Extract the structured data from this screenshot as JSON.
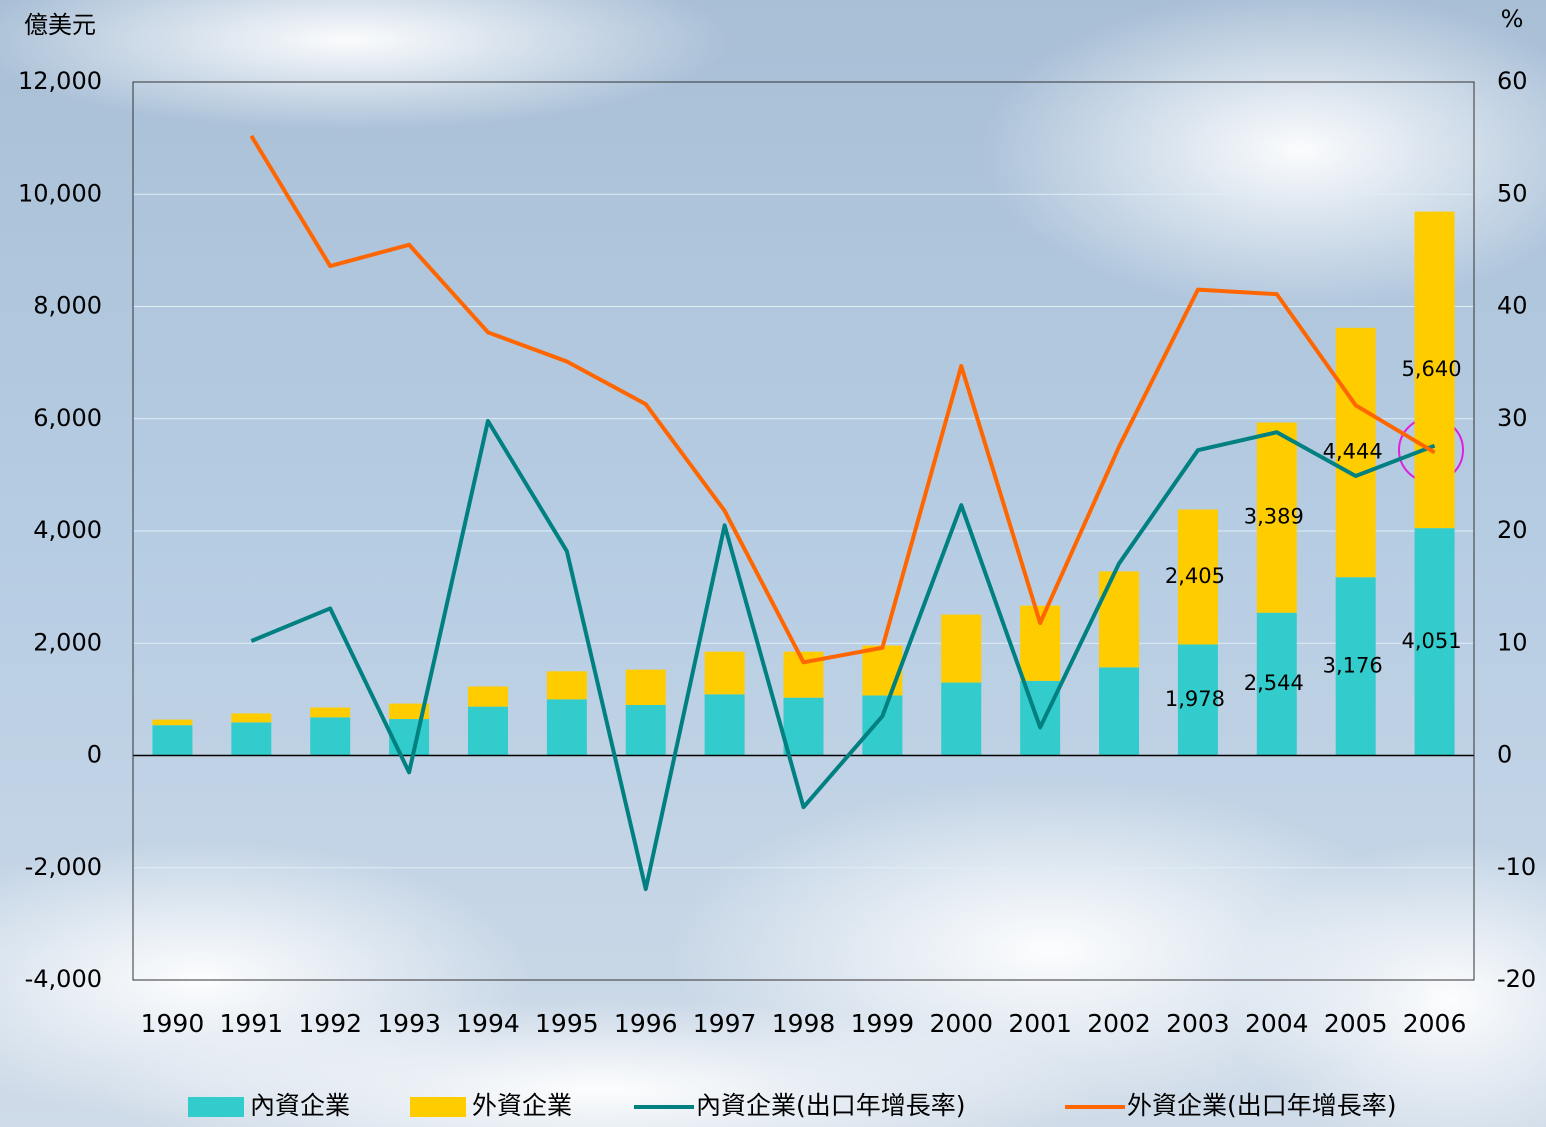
{
  "chart_data": {
    "type": "bar",
    "stacked": true,
    "y_label": "億美元",
    "y2_label": "%",
    "categories": [
      "1990",
      "1991",
      "1992",
      "1993",
      "1994",
      "1995",
      "1996",
      "1997",
      "1998",
      "1999",
      "2000",
      "2001",
      "2002",
      "2003",
      "2004",
      "2005",
      "2006"
    ],
    "series": [
      {
        "name": "內資企業",
        "type": "bar",
        "color": "#33cccc",
        "values": [
          540,
          590,
          680,
          650,
          870,
          1000,
          900,
          1090,
          1030,
          1070,
          1300,
          1330,
          1570,
          1978,
          2544,
          3176,
          4051
        ],
        "value_labels": [
          null,
          null,
          null,
          null,
          null,
          null,
          null,
          null,
          null,
          null,
          null,
          null,
          null,
          "1,978",
          "2,544",
          "3,176",
          "4,051"
        ]
      },
      {
        "name": "外資企業",
        "type": "bar",
        "color": "#ffcc00",
        "values": [
          100,
          160,
          175,
          275,
          360,
          500,
          630,
          760,
          820,
          890,
          1210,
          1340,
          1710,
          2405,
          3389,
          4444,
          5640
        ],
        "value_labels": [
          null,
          null,
          null,
          null,
          null,
          null,
          null,
          null,
          null,
          null,
          null,
          null,
          null,
          "2,405",
          "3,389",
          "4,444",
          "5,640"
        ]
      },
      {
        "name": "內資企業(出口年增長率)",
        "type": "line",
        "axis": "y2",
        "color": "#008080",
        "values": [
          null,
          10.2,
          13.1,
          -1.5,
          29.8,
          18.2,
          -11.9,
          20.5,
          -4.6,
          3.5,
          22.3,
          2.5,
          17.1,
          27.2,
          28.8,
          24.9,
          27.6
        ]
      },
      {
        "name": "外資企業(出口年增長率)",
        "type": "line",
        "axis": "y2",
        "color": "#ff6600",
        "values": [
          null,
          55.2,
          43.6,
          45.5,
          37.7,
          35.1,
          31.3,
          21.8,
          8.3,
          9.6,
          34.7,
          11.8,
          27.5,
          41.5,
          41.1,
          31.2,
          27.0
        ]
      }
    ],
    "ylim": [
      -4000,
      12000
    ],
    "yticks": [
      {
        "value": -4000,
        "label": "-4,000"
      },
      {
        "value": -2000,
        "label": "-2,000"
      },
      0,
      {
        "value": 2000,
        "label": "2,000"
      },
      {
        "value": 4000,
        "label": "4,000"
      },
      {
        "value": 6000,
        "label": "6,000"
      },
      {
        "value": 8000,
        "label": "8,000"
      },
      {
        "value": 10000,
        "label": "10,000"
      },
      {
        "value": 12000,
        "label": "12,000"
      }
    ],
    "y2lim": [
      -20,
      60
    ],
    "y2ticks": [
      -20,
      -10,
      0,
      10,
      20,
      30,
      40,
      50,
      60
    ],
    "grid": true,
    "legend": "bottom"
  }
}
